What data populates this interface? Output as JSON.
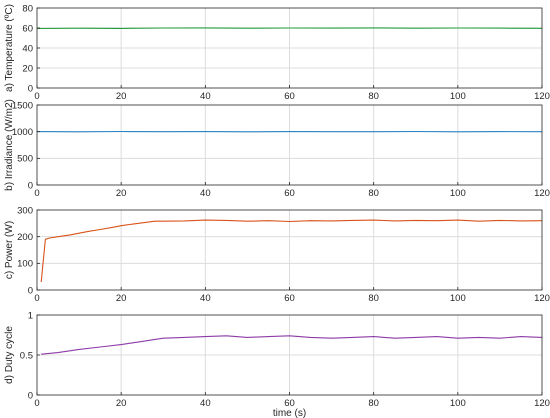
{
  "chart_data": [
    {
      "type": "line",
      "ylabel": "a) Temperature (ºC)",
      "xlabel": "",
      "xlim": [
        0,
        120
      ],
      "ylim": [
        0,
        80
      ],
      "xticks": [
        "0",
        "20",
        "40",
        "60",
        "80",
        "100",
        "120"
      ],
      "yticks": [
        "0",
        "20",
        "40",
        "60",
        "80"
      ],
      "grid": true,
      "series": [
        {
          "color": "#1f9b3a",
          "x": [
            0,
            10,
            20,
            30,
            40,
            50,
            60,
            70,
            80,
            90,
            100,
            110,
            120
          ],
          "y": [
            59.5,
            59.8,
            59.6,
            60.0,
            60.1,
            59.8,
            60.0,
            59.9,
            60.1,
            59.8,
            60.0,
            59.9,
            59.7
          ]
        }
      ]
    },
    {
      "type": "line",
      "ylabel": "b) Irradiance (W/m2)",
      "xlabel": "",
      "xlim": [
        0,
        120
      ],
      "ylim": [
        0,
        1500
      ],
      "xticks": [
        "0",
        "20",
        "40",
        "60",
        "80",
        "100",
        "120"
      ],
      "yticks": [
        "0",
        "500",
        "1000",
        "1500"
      ],
      "grid": true,
      "series": [
        {
          "color": "#2a85c8",
          "x": [
            0,
            10,
            20,
            30,
            40,
            50,
            60,
            70,
            80,
            90,
            100,
            110,
            120
          ],
          "y": [
            1002,
            998,
            1003,
            999,
            1001,
            997,
            1002,
            1000,
            999,
            1003,
            998,
            1001,
            1000
          ]
        }
      ]
    },
    {
      "type": "line",
      "ylabel": "c) Power (W)",
      "xlabel": "",
      "xlim": [
        0,
        120
      ],
      "ylim": [
        0,
        300
      ],
      "xticks": [
        "0",
        "20",
        "40",
        "60",
        "80",
        "100",
        "120"
      ],
      "yticks": [
        "0",
        "100",
        "200",
        "300"
      ],
      "grid": true,
      "series": [
        {
          "color": "#d95319",
          "x": [
            1,
            2,
            3,
            5,
            8,
            10,
            12,
            15,
            18,
            20,
            23,
            26,
            28,
            30,
            35,
            40,
            45,
            50,
            55,
            60,
            65,
            70,
            75,
            80,
            85,
            90,
            95,
            100,
            105,
            110,
            115,
            120
          ],
          "y": [
            30,
            190,
            195,
            200,
            207,
            213,
            219,
            227,
            235,
            241,
            248,
            254,
            258,
            258,
            259,
            262,
            261,
            258,
            260,
            257,
            260,
            259,
            261,
            262,
            259,
            261,
            260,
            262,
            258,
            261,
            259,
            260
          ]
        }
      ]
    },
    {
      "type": "line",
      "ylabel": "d) Duty cycle",
      "xlabel": "time (s)",
      "xlim": [
        0,
        120
      ],
      "ylim": [
        0,
        1
      ],
      "xticks": [
        "0",
        "20",
        "40",
        "60",
        "80",
        "100",
        "120"
      ],
      "yticks": [
        "0",
        "0.5",
        "1"
      ],
      "grid": true,
      "series": [
        {
          "color": "#8e3aa8",
          "x": [
            1,
            5,
            10,
            15,
            20,
            25,
            30,
            35,
            40,
            45,
            50,
            55,
            60,
            65,
            70,
            75,
            80,
            85,
            90,
            95,
            100,
            105,
            110,
            115,
            120
          ],
          "y": [
            0.51,
            0.53,
            0.57,
            0.6,
            0.63,
            0.67,
            0.71,
            0.72,
            0.73,
            0.74,
            0.72,
            0.73,
            0.74,
            0.72,
            0.71,
            0.72,
            0.73,
            0.71,
            0.72,
            0.73,
            0.71,
            0.72,
            0.71,
            0.73,
            0.72
          ]
        }
      ]
    }
  ]
}
